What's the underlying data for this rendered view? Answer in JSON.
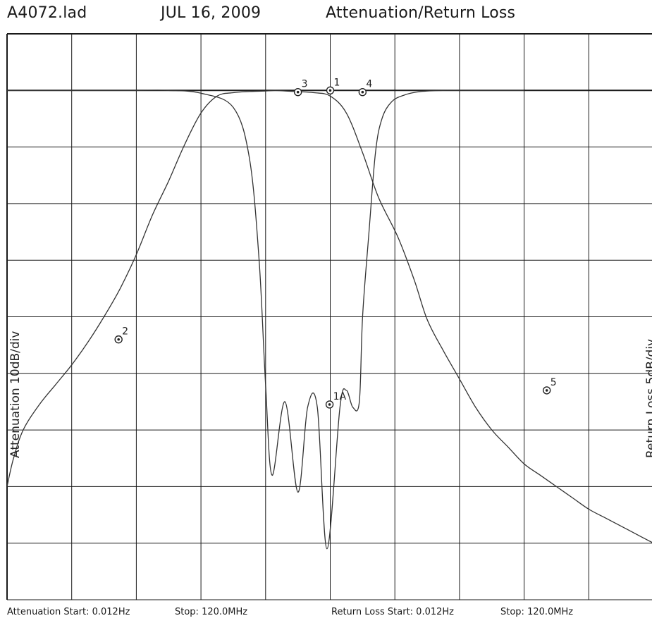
{
  "header": {
    "file": "A4072.lad",
    "date": "JUL 16, 2009",
    "title": "Attenuation/Return Loss"
  },
  "footer": {
    "att_start": "Attenuation Start: 0.012Hz",
    "att_stop": "Stop: 120.0MHz",
    "rl_start": "Return Loss Start: 0.012Hz",
    "rl_stop": "Stop: 120.0MHz"
  },
  "chart_data": {
    "type": "line",
    "ylabel_left": "Attenuation 10dB/div",
    "ylabel_right": "Return Loss 5dB/div",
    "grid": true,
    "colors": {
      "trace": "#333333",
      "grid": "#1a1a1a",
      "marker": "#222222"
    },
    "series": [
      {
        "x": [
          0.0,
          0.2,
          0.5,
          1.0,
          1.5,
          2.0,
          2.5,
          3.0,
          3.5,
          4.0,
          4.5,
          5.0,
          5.5,
          6.0,
          6.5,
          7.0,
          7.5,
          8.0,
          8.3,
          8.6,
          8.9,
          9.5,
          10.0,
          10.5,
          11.0,
          11.5,
          12.1,
          12.6,
          13.0,
          13.5,
          14.0,
          14.5,
          15.0,
          15.5,
          16.0,
          16.5,
          17.0,
          17.5,
          18.0,
          18.5,
          19.0,
          19.5,
          20.0
        ],
        "y": [
          -7.0,
          -6.5,
          -6.0,
          -5.55,
          -5.2,
          -4.85,
          -4.45,
          -4.0,
          -3.5,
          -2.9,
          -2.2,
          -1.6,
          -0.95,
          -0.4,
          -0.1,
          -0.04,
          -0.02,
          -0.01,
          0.0,
          -0.01,
          -0.02,
          -0.04,
          -0.1,
          -0.4,
          -1.1,
          -1.9,
          -2.6,
          -3.35,
          -4.05,
          -4.6,
          -5.1,
          -5.6,
          -6.0,
          -6.3,
          -6.6,
          -6.8,
          -7.0,
          -7.2,
          -7.4,
          -7.55,
          -7.7,
          -7.85,
          -8.0
        ]
      },
      {
        "x": [
          0.0,
          1.0,
          2.0,
          3.0,
          4.0,
          5.0,
          6.0,
          7.0,
          7.5,
          7.8,
          8.0,
          8.2,
          8.6,
          9.0,
          9.3,
          9.6,
          9.9,
          10.3,
          10.5,
          10.7,
          10.9,
          11.0,
          11.2,
          11.4,
          11.6,
          11.9,
          12.3,
          12.8,
          13.5,
          14.5,
          15.5,
          16.0
        ],
        "y": [
          0.0,
          0.0,
          0.0,
          0.0,
          0.0,
          0.0,
          -0.05,
          -0.3,
          -1.2,
          -3.0,
          -5.2,
          -6.8,
          -5.5,
          -7.1,
          -5.6,
          -5.6,
          -8.1,
          -5.6,
          -5.3,
          -5.6,
          -5.5,
          -4.0,
          -2.5,
          -1.1,
          -0.5,
          -0.2,
          -0.08,
          -0.02,
          0.0,
          0.0,
          0.0,
          0.0
        ]
      }
    ],
    "markers": [
      {
        "label": "1",
        "x": 10.0,
        "y": 0.0
      },
      {
        "label": "2",
        "x": 3.45,
        "y": -4.4
      },
      {
        "label": "3",
        "x": 9.0,
        "y": -0.03
      },
      {
        "label": "4",
        "x": 11.0,
        "y": -0.03
      },
      {
        "label": "1A",
        "x": 9.98,
        "y": -5.55
      },
      {
        "label": "5",
        "x": 16.7,
        "y": -5.3
      }
    ],
    "xlim": [
      0,
      20
    ],
    "ylim": [
      -9,
      1
    ],
    "x_divisions": 10,
    "y_divisions": 10
  }
}
